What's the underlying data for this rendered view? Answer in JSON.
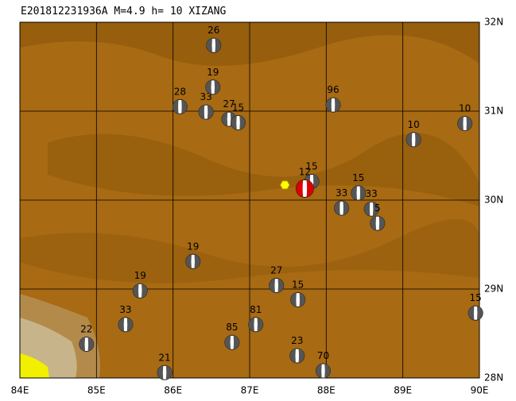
{
  "title": "E201812231936A M=4.9 h= 10 XIZANG",
  "xlim": [
    84,
    90
  ],
  "ylim": [
    28,
    32
  ],
  "xticks": [
    {
      "value": 84,
      "label": "84E"
    },
    {
      "value": 85,
      "label": "85E"
    },
    {
      "value": 86,
      "label": "86E"
    },
    {
      "value": 87,
      "label": "87E"
    },
    {
      "value": 88,
      "label": "88E"
    },
    {
      "value": 89,
      "label": "89E"
    },
    {
      "value": 90,
      "label": "90E"
    }
  ],
  "yticks": [
    {
      "value": 28,
      "label": "28N"
    },
    {
      "value": 29,
      "label": "29N"
    },
    {
      "value": 30,
      "label": "30N"
    },
    {
      "value": 31,
      "label": "31N"
    },
    {
      "value": 32,
      "label": "32N"
    }
  ],
  "epicenter": {
    "lon": 87.46,
    "lat": 30.17
  },
  "events": [
    {
      "label": "26",
      "lon": 86.53,
      "lat": 31.74
    },
    {
      "label": "28",
      "lon": 86.09,
      "lat": 31.05
    },
    {
      "label": "33",
      "lon": 86.43,
      "lat": 30.99
    },
    {
      "label": "19",
      "lon": 86.52,
      "lat": 31.27
    },
    {
      "label": "27",
      "lon": 86.73,
      "lat": 30.91
    },
    {
      "label": "15",
      "lon": 86.85,
      "lat": 30.87
    },
    {
      "label": "96",
      "lon": 88.09,
      "lat": 31.07
    },
    {
      "label": "10",
      "lon": 89.81,
      "lat": 30.86
    },
    {
      "label": "10",
      "lon": 89.14,
      "lat": 30.68
    },
    {
      "label": "15",
      "lon": 87.81,
      "lat": 30.21
    },
    {
      "label": "12",
      "lon": 87.72,
      "lat": 30.13,
      "main": true
    },
    {
      "label": "15",
      "lon": 88.42,
      "lat": 30.08
    },
    {
      "label": "33",
      "lon": 88.2,
      "lat": 29.91
    },
    {
      "label": "33",
      "lon": 88.59,
      "lat": 29.9
    },
    {
      "label": "5",
      "lon": 88.67,
      "lat": 29.74
    },
    {
      "label": "19",
      "lon": 86.26,
      "lat": 29.31
    },
    {
      "label": "19",
      "lon": 85.57,
      "lat": 28.98
    },
    {
      "label": "27",
      "lon": 87.35,
      "lat": 29.04
    },
    {
      "label": "15",
      "lon": 87.63,
      "lat": 28.88
    },
    {
      "label": "33",
      "lon": 85.38,
      "lat": 28.6
    },
    {
      "label": "81",
      "lon": 87.08,
      "lat": 28.6
    },
    {
      "label": "85",
      "lon": 86.77,
      "lat": 28.4
    },
    {
      "label": "22",
      "lon": 84.87,
      "lat": 28.38
    },
    {
      "label": "23",
      "lon": 87.62,
      "lat": 28.25
    },
    {
      "label": "70",
      "lon": 87.96,
      "lat": 28.08
    },
    {
      "label": "21",
      "lon": 85.89,
      "lat": 28.06
    },
    {
      "label": "15",
      "lon": 89.95,
      "lat": 28.73
    }
  ]
}
